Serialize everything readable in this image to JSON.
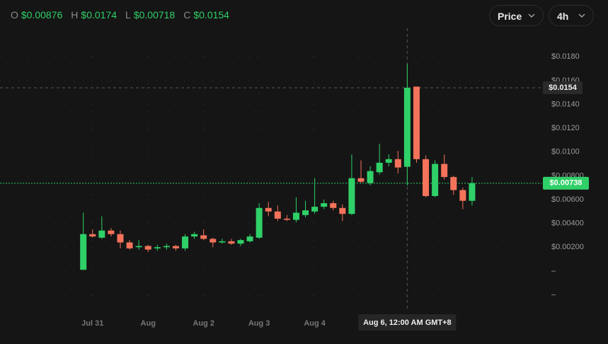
{
  "header": {
    "items": [
      {
        "label": "O",
        "value": "$0.00876"
      },
      {
        "label": "H",
        "value": "$0.0174"
      },
      {
        "label": "L",
        "value": "$0.00718"
      },
      {
        "label": "C",
        "value": "$0.0154"
      }
    ]
  },
  "controls": {
    "mode": "Price",
    "interval": "4h"
  },
  "chart_data": {
    "type": "candlestick",
    "up_color": "#2fd068",
    "down_color": "#f4735a",
    "grid": true,
    "open": [
      0.0001,
      0.0031,
      0.0028,
      0.0034,
      0.0031,
      0.0024,
      0.002,
      0.0021,
      0.0019,
      0.002,
      0.0021,
      0.0019,
      0.0029,
      0.003,
      0.0027,
      0.0024,
      0.0025,
      0.0023,
      0.0025,
      0.0028,
      0.0053,
      0.005,
      0.0044,
      0.0043,
      0.0047,
      0.005,
      0.0054,
      0.0057,
      0.0053,
      0.0048,
      0.0078,
      0.0074,
      0.0083,
      0.0091,
      0.0094,
      0.00876,
      0.0155,
      0.0094,
      0.0063,
      0.009,
      0.0079,
      0.0068,
      0.0059
    ],
    "high": [
      0.0049,
      0.0035,
      0.0046,
      0.0036,
      0.0034,
      0.0026,
      0.0026,
      0.0022,
      0.0022,
      0.0023,
      0.0022,
      0.0031,
      0.0033,
      0.0035,
      0.0028,
      0.0027,
      0.0027,
      0.0027,
      0.0031,
      0.0057,
      0.0058,
      0.0055,
      0.0047,
      0.0062,
      0.0059,
      0.0078,
      0.006,
      0.0059,
      0.0056,
      0.0098,
      0.0093,
      0.0088,
      0.0107,
      0.0098,
      0.0101,
      0.0174,
      0.0155,
      0.0097,
      0.0093,
      0.0098,
      0.008,
      0.007,
      0.0079
    ],
    "low": [
      0.0001,
      0.0028,
      0.0027,
      0.0029,
      0.0019,
      0.0018,
      0.0018,
      0.0016,
      0.0017,
      0.0018,
      0.0017,
      0.0017,
      0.0027,
      0.0026,
      0.002,
      0.0023,
      0.0022,
      0.0021,
      0.0024,
      0.0027,
      0.0046,
      0.0042,
      0.0042,
      0.0041,
      0.0045,
      0.0048,
      0.0052,
      0.0051,
      0.0042,
      0.0047,
      0.0074,
      0.0072,
      0.0081,
      0.0088,
      0.0082,
      0.00718,
      0.0091,
      0.0062,
      0.0062,
      0.0077,
      0.0064,
      0.0052,
      0.0055
    ],
    "close": [
      0.0031,
      0.0029,
      0.0034,
      0.0031,
      0.0024,
      0.0019,
      0.0021,
      0.0018,
      0.002,
      0.0021,
      0.0019,
      0.0029,
      0.0031,
      0.0027,
      0.0024,
      0.0025,
      0.0023,
      0.0026,
      0.0029,
      0.0053,
      0.005,
      0.0044,
      0.0043,
      0.0049,
      0.0051,
      0.0054,
      0.0057,
      0.0053,
      0.0048,
      0.0078,
      0.0075,
      0.0084,
      0.0091,
      0.0094,
      0.0087,
      0.0154,
      0.0094,
      0.0063,
      0.009,
      0.0079,
      0.0068,
      0.0059,
      0.00738
    ],
    "xlim": [
      -9,
      49.5
    ],
    "xticks": [
      {
        "value": 1,
        "label": "Jul 31"
      },
      {
        "value": 7,
        "label": "Aug"
      },
      {
        "value": 13,
        "label": "Aug 2"
      },
      {
        "value": 19,
        "label": "Aug 3"
      },
      {
        "value": 25,
        "label": "Aug 4"
      }
    ],
    "ylim": [
      -0.0034,
      0.0204
    ],
    "yticks": [
      {
        "value": -0.002,
        "label": "–"
      },
      {
        "value": 0,
        "label": "–"
      },
      {
        "value": 0.002,
        "label": "$0.00200"
      },
      {
        "value": 0.004,
        "label": "$0.00400"
      },
      {
        "value": 0.006,
        "label": "$0.00600"
      },
      {
        "value": 0.008,
        "label": "$0.00800"
      },
      {
        "value": 0.01,
        "label": "$0.0100"
      },
      {
        "value": 0.012,
        "label": "$0.0120"
      },
      {
        "value": 0.014,
        "label": "$0.0140"
      },
      {
        "value": 0.016,
        "label": "$0.0160"
      },
      {
        "value": 0.018,
        "label": "$0.0180"
      }
    ],
    "crosshair": {
      "x": {
        "value": 35,
        "label": "Aug 6, 12:00 AM GMT+8"
      },
      "y": {
        "value": 0.0154,
        "label": "$0.0154"
      }
    },
    "last_price": {
      "value": 0.00738,
      "label": "$0.00738"
    }
  }
}
